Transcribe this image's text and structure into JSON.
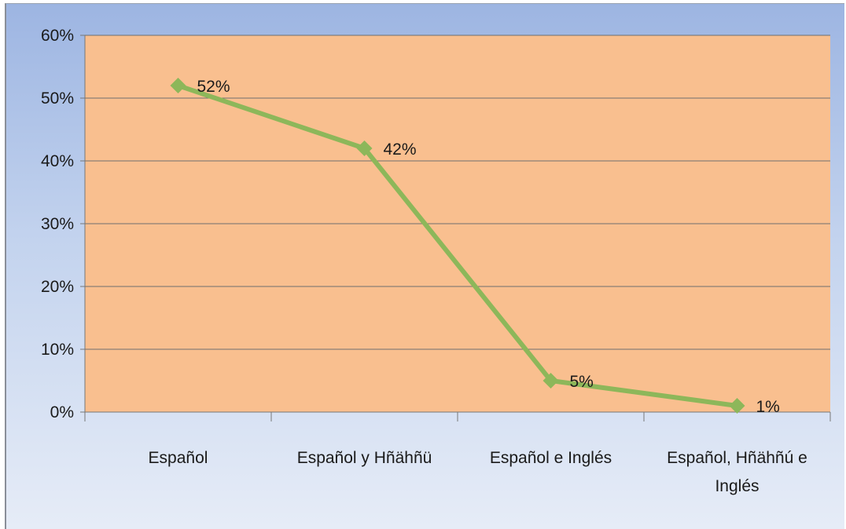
{
  "chart_data": {
    "type": "line",
    "categories": [
      [
        "Español"
      ],
      [
        "Español y Hñähñü"
      ],
      [
        "Español e Inglés"
      ],
      [
        "Español, Hñähñú e",
        "Inglés"
      ]
    ],
    "series": [
      {
        "values": [
          52,
          42,
          5,
          1
        ],
        "data_labels": [
          "52%",
          "42%",
          "5%",
          "1%"
        ]
      }
    ],
    "y_ticks": [
      "0%",
      "10%",
      "20%",
      "30%",
      "40%",
      "50%",
      "60%"
    ],
    "ylim": [
      0,
      60
    ],
    "grid": true,
    "legend": "none",
    "colors": {
      "plot_area": "#f9bf8f",
      "line": "#8db75a",
      "gridline": "#6f6f6f",
      "background_top": "#9db5e2",
      "background_bottom": "#e6ecf7"
    }
  }
}
